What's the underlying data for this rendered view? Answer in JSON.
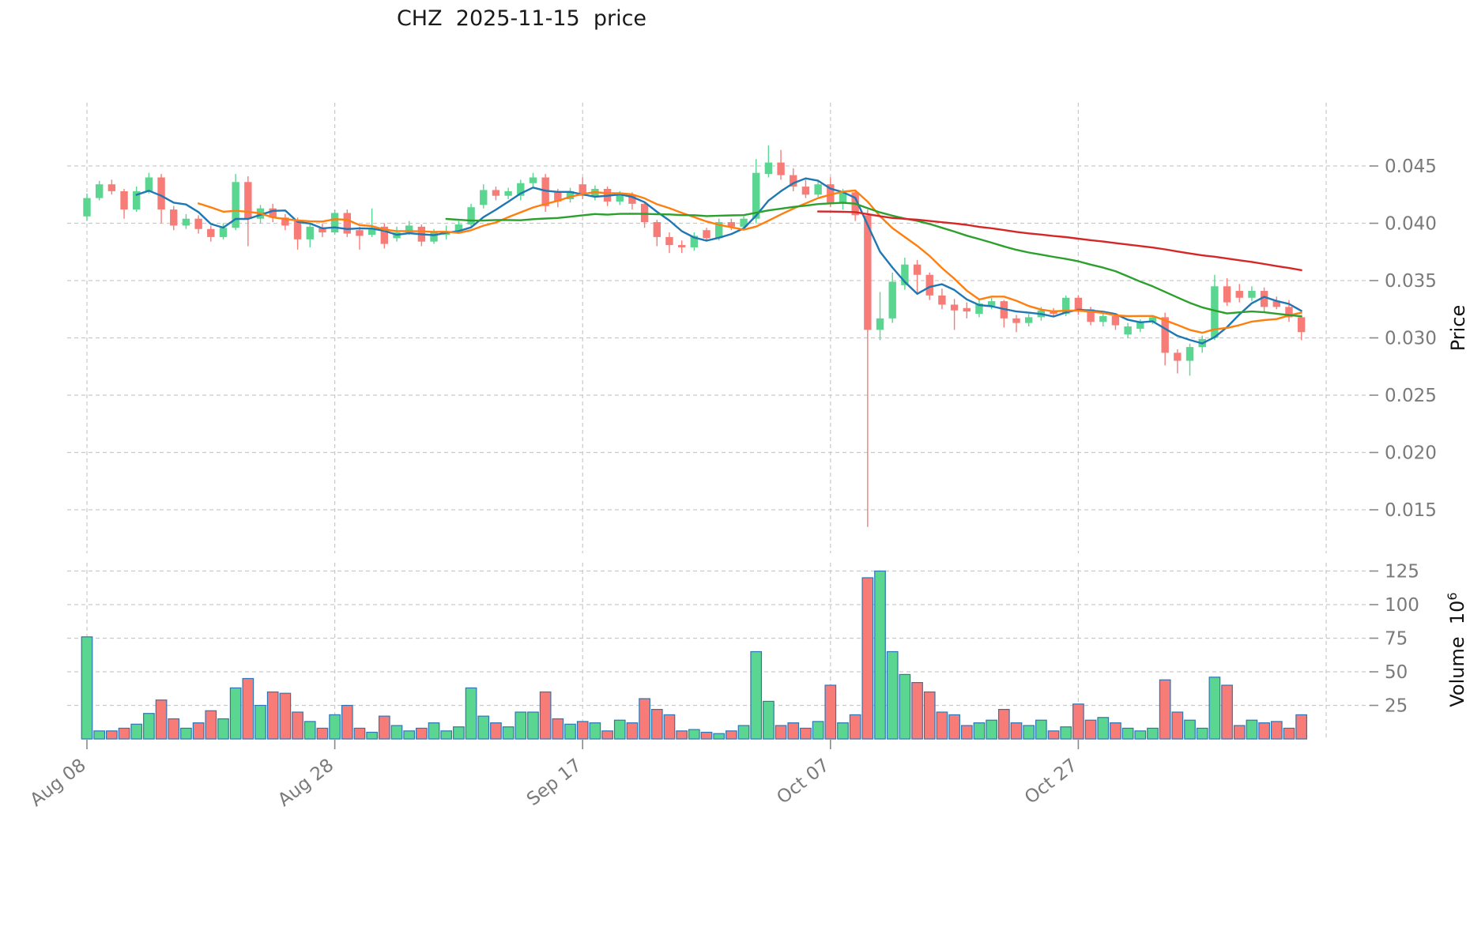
{
  "title": "CHZ  2025-11-15  price",
  "axes": {
    "price_label": "Price",
    "volume_label_main": "Volume  10",
    "volume_label_sup": "6",
    "price_tick_labels": [
      "0.045",
      "0.040",
      "0.035",
      "0.030",
      "0.025",
      "0.020",
      "0.015"
    ],
    "price_tick_values": [
      0.045,
      0.04,
      0.035,
      0.03,
      0.025,
      0.02,
      0.015
    ],
    "volume_tick_labels": [
      "125",
      "100",
      "75",
      "50",
      "25"
    ],
    "volume_tick_values": [
      125,
      100,
      75,
      50,
      25
    ],
    "x_tick_labels": [
      "Aug 08",
      "Aug 28",
      "Sep 17",
      "Oct 07",
      "Oct 27"
    ],
    "x_tick_day_indices": [
      0,
      20,
      40,
      60,
      80
    ],
    "extra_unlabeled_gridline_day": 100
  },
  "colors": {
    "background": "#ffffff",
    "grid": "#c9c9c9",
    "candle_up": "#5ad690",
    "candle_down": "#f77c78",
    "volume_bar_edge": "#2e75b5",
    "ma_blue": "#1f77b4",
    "ma_orange": "#ff7f0e",
    "ma_green": "#2ca02c",
    "ma_red": "#d62728",
    "tick_text": "#7a7a7a",
    "title_text": "#1a1a1a"
  },
  "chart_data": {
    "type": "candlestick",
    "title": "CHZ  2025-11-15  price",
    "ylabel_price": "Price",
    "ylabel_volume": "Volume 10⁶",
    "price_ylim": [
      0.0112,
      0.0505
    ],
    "volume_ylim": [
      0,
      132
    ],
    "grid": true,
    "moving_averages": [
      {
        "period": 5,
        "color_key": "ma_blue"
      },
      {
        "period": 10,
        "color_key": "ma_orange"
      },
      {
        "period": 30,
        "color_key": "ma_green"
      },
      {
        "period": 60,
        "color_key": "ma_red"
      }
    ],
    "columns": [
      "date",
      "open",
      "high",
      "low",
      "close",
      "volume_millions"
    ],
    "rows": [
      [
        "2025-08-08",
        0.0406,
        0.0426,
        0.0402,
        0.0422,
        76
      ],
      [
        "2025-08-09",
        0.0422,
        0.0437,
        0.042,
        0.0434,
        6
      ],
      [
        "2025-08-10",
        0.0434,
        0.0438,
        0.0425,
        0.0428,
        6
      ],
      [
        "2025-08-11",
        0.0428,
        0.043,
        0.0404,
        0.0412,
        8
      ],
      [
        "2025-08-12",
        0.0412,
        0.0432,
        0.041,
        0.0428,
        11
      ],
      [
        "2025-08-13",
        0.0428,
        0.0444,
        0.0426,
        0.044,
        19
      ],
      [
        "2025-08-14",
        0.044,
        0.0443,
        0.04,
        0.0412,
        29
      ],
      [
        "2025-08-15",
        0.0412,
        0.0415,
        0.0394,
        0.0398,
        15
      ],
      [
        "2025-08-16",
        0.0398,
        0.0408,
        0.0395,
        0.0404,
        8
      ],
      [
        "2025-08-17",
        0.0404,
        0.0407,
        0.0391,
        0.0395,
        12
      ],
      [
        "2025-08-18",
        0.0395,
        0.0398,
        0.0384,
        0.0388,
        21
      ],
      [
        "2025-08-19",
        0.0388,
        0.04,
        0.0386,
        0.0396,
        15
      ],
      [
        "2025-08-20",
        0.0396,
        0.0443,
        0.0394,
        0.0436,
        38
      ],
      [
        "2025-08-21",
        0.0436,
        0.0441,
        0.038,
        0.0404,
        45
      ],
      [
        "2025-08-22",
        0.0404,
        0.0416,
        0.04,
        0.0413,
        25
      ],
      [
        "2025-08-23",
        0.0413,
        0.0417,
        0.0401,
        0.0405,
        35
      ],
      [
        "2025-08-24",
        0.0405,
        0.0408,
        0.0394,
        0.0398,
        34
      ],
      [
        "2025-08-25",
        0.0402,
        0.0405,
        0.0377,
        0.0386,
        20
      ],
      [
        "2025-08-26",
        0.0386,
        0.04,
        0.0379,
        0.0397,
        13
      ],
      [
        "2025-08-27",
        0.0396,
        0.04,
        0.0388,
        0.0392,
        8
      ],
      [
        "2025-08-28",
        0.0392,
        0.0412,
        0.039,
        0.0409,
        18
      ],
      [
        "2025-08-29",
        0.0409,
        0.0412,
        0.0388,
        0.0391,
        25
      ],
      [
        "2025-08-30",
        0.0394,
        0.0397,
        0.0377,
        0.0389,
        8
      ],
      [
        "2025-08-31",
        0.039,
        0.0413,
        0.0388,
        0.0396,
        5
      ],
      [
        "2025-09-01",
        0.0397,
        0.04,
        0.0378,
        0.0382,
        17
      ],
      [
        "2025-09-02",
        0.0387,
        0.0397,
        0.0384,
        0.0392,
        10
      ],
      [
        "2025-09-03",
        0.0392,
        0.0402,
        0.039,
        0.0398,
        6
      ],
      [
        "2025-09-04",
        0.0397,
        0.0399,
        0.038,
        0.0384,
        8
      ],
      [
        "2025-09-05",
        0.0384,
        0.0395,
        0.0382,
        0.0392,
        12
      ],
      [
        "2025-09-06",
        0.039,
        0.0398,
        0.0386,
        0.0393,
        6
      ],
      [
        "2025-09-07",
        0.0393,
        0.0402,
        0.0391,
        0.0399,
        9
      ],
      [
        "2025-09-08",
        0.0399,
        0.0417,
        0.0397,
        0.0414,
        38
      ],
      [
        "2025-09-09",
        0.0416,
        0.0434,
        0.0413,
        0.0429,
        17
      ],
      [
        "2025-09-10",
        0.0429,
        0.0432,
        0.042,
        0.0424,
        12
      ],
      [
        "2025-09-11",
        0.0424,
        0.0431,
        0.0421,
        0.0428,
        9
      ],
      [
        "2025-09-12",
        0.0424,
        0.0438,
        0.042,
        0.0435,
        20
      ],
      [
        "2025-09-13",
        0.0435,
        0.0444,
        0.0431,
        0.044,
        20
      ],
      [
        "2025-09-14",
        0.044,
        0.0443,
        0.041,
        0.0415,
        35
      ],
      [
        "2025-09-15",
        0.0427,
        0.043,
        0.0414,
        0.0419,
        15
      ],
      [
        "2025-09-16",
        0.0421,
        0.0431,
        0.0418,
        0.0428,
        11
      ],
      [
        "2025-09-17",
        0.0434,
        0.044,
        0.0421,
        0.0424,
        13
      ],
      [
        "2025-09-18",
        0.0424,
        0.0433,
        0.042,
        0.043,
        12
      ],
      [
        "2025-09-19",
        0.043,
        0.0432,
        0.0415,
        0.0419,
        6
      ],
      [
        "2025-09-20",
        0.0419,
        0.0428,
        0.0416,
        0.0425,
        14
      ],
      [
        "2025-09-21",
        0.0425,
        0.0427,
        0.0412,
        0.0417,
        12
      ],
      [
        "2025-09-22",
        0.0417,
        0.0419,
        0.0396,
        0.0401,
        30
      ],
      [
        "2025-09-23",
        0.0401,
        0.0403,
        0.038,
        0.0388,
        22
      ],
      [
        "2025-09-24",
        0.0388,
        0.0392,
        0.0374,
        0.0381,
        18
      ],
      [
        "2025-09-25",
        0.0381,
        0.0385,
        0.0374,
        0.0379,
        6
      ],
      [
        "2025-09-26",
        0.0379,
        0.0392,
        0.0376,
        0.0389,
        7
      ],
      [
        "2025-09-27",
        0.0394,
        0.0396,
        0.0384,
        0.0387,
        5
      ],
      [
        "2025-09-28",
        0.0387,
        0.0404,
        0.0385,
        0.0401,
        4
      ],
      [
        "2025-09-29",
        0.0401,
        0.0404,
        0.0394,
        0.0397,
        6
      ],
      [
        "2025-09-30",
        0.0397,
        0.0406,
        0.0395,
        0.0404,
        10
      ],
      [
        "2025-10-01",
        0.0404,
        0.0456,
        0.04,
        0.0444,
        65
      ],
      [
        "2025-10-02",
        0.0443,
        0.0468,
        0.044,
        0.0453,
        28
      ],
      [
        "2025-10-03",
        0.0453,
        0.0464,
        0.0438,
        0.0442,
        10
      ],
      [
        "2025-10-04",
        0.0442,
        0.0448,
        0.0428,
        0.0432,
        12
      ],
      [
        "2025-10-05",
        0.0432,
        0.0438,
        0.0422,
        0.0425,
        8
      ],
      [
        "2025-10-06",
        0.0425,
        0.0437,
        0.0423,
        0.0434,
        13
      ],
      [
        "2025-10-07",
        0.0434,
        0.044,
        0.0414,
        0.0418,
        40
      ],
      [
        "2025-10-08",
        0.0418,
        0.043,
        0.0412,
        0.0427,
        12
      ],
      [
        "2025-10-09",
        0.0427,
        0.0429,
        0.0402,
        0.0407,
        18
      ],
      [
        "2025-10-10",
        0.0407,
        0.0412,
        0.0135,
        0.0307,
        120
      ],
      [
        "2025-10-11",
        0.0307,
        0.034,
        0.0298,
        0.0317,
        125
      ],
      [
        "2025-10-12",
        0.0317,
        0.0357,
        0.0313,
        0.0349,
        65
      ],
      [
        "2025-10-13",
        0.0346,
        0.037,
        0.0342,
        0.0364,
        48
      ],
      [
        "2025-10-14",
        0.0364,
        0.0368,
        0.0338,
        0.0355,
        42
      ],
      [
        "2025-10-15",
        0.0355,
        0.0357,
        0.0333,
        0.0337,
        35
      ],
      [
        "2025-10-16",
        0.0337,
        0.0343,
        0.0325,
        0.0329,
        20
      ],
      [
        "2025-10-17",
        0.0329,
        0.0334,
        0.0307,
        0.0324,
        18
      ],
      [
        "2025-10-18",
        0.0326,
        0.0331,
        0.0317,
        0.0323,
        10
      ],
      [
        "2025-10-19",
        0.0321,
        0.0333,
        0.0318,
        0.033,
        12
      ],
      [
        "2025-10-20",
        0.0328,
        0.0335,
        0.0325,
        0.0332,
        14
      ],
      [
        "2025-10-21",
        0.0332,
        0.0333,
        0.0309,
        0.0317,
        22
      ],
      [
        "2025-10-22",
        0.0317,
        0.032,
        0.0305,
        0.0313,
        12
      ],
      [
        "2025-10-23",
        0.0313,
        0.0321,
        0.031,
        0.0318,
        10
      ],
      [
        "2025-10-24",
        0.0318,
        0.0327,
        0.0315,
        0.0324,
        14
      ],
      [
        "2025-10-25",
        0.0324,
        0.0326,
        0.0318,
        0.0321,
        6
      ],
      [
        "2025-10-26",
        0.0321,
        0.0337,
        0.0319,
        0.0335,
        9
      ],
      [
        "2025-10-27",
        0.0335,
        0.0337,
        0.032,
        0.0325,
        26
      ],
      [
        "2025-10-28",
        0.0325,
        0.0327,
        0.0311,
        0.0314,
        14
      ],
      [
        "2025-10-29",
        0.0314,
        0.0322,
        0.031,
        0.0319,
        16
      ],
      [
        "2025-10-30",
        0.0319,
        0.0321,
        0.0307,
        0.0311,
        12
      ],
      [
        "2025-10-31",
        0.0303,
        0.0313,
        0.03,
        0.031,
        8
      ],
      [
        "2025-11-01",
        0.0308,
        0.0316,
        0.0305,
        0.0314,
        6
      ],
      [
        "2025-11-02",
        0.0314,
        0.032,
        0.0312,
        0.0318,
        8
      ],
      [
        "2025-11-03",
        0.0318,
        0.0322,
        0.0276,
        0.0287,
        44
      ],
      [
        "2025-11-04",
        0.0287,
        0.029,
        0.0269,
        0.028,
        20
      ],
      [
        "2025-11-05",
        0.028,
        0.0295,
        0.0267,
        0.0292,
        14
      ],
      [
        "2025-11-06",
        0.0292,
        0.0302,
        0.0287,
        0.0299,
        8
      ],
      [
        "2025-11-07",
        0.03,
        0.0355,
        0.0298,
        0.0345,
        46
      ],
      [
        "2025-11-08",
        0.0345,
        0.0352,
        0.0328,
        0.0331,
        40
      ],
      [
        "2025-11-09",
        0.0341,
        0.0347,
        0.0331,
        0.0335,
        10
      ],
      [
        "2025-11-10",
        0.0335,
        0.0345,
        0.0332,
        0.0341,
        14
      ],
      [
        "2025-11-11",
        0.0341,
        0.0344,
        0.0322,
        0.0327,
        12
      ],
      [
        "2025-11-12",
        0.0332,
        0.0336,
        0.0325,
        0.0327,
        13
      ],
      [
        "2025-11-13",
        0.0327,
        0.0333,
        0.0314,
        0.0318,
        8
      ],
      [
        "2025-11-14",
        0.0318,
        0.032,
        0.0298,
        0.0305,
        18
      ]
    ]
  }
}
